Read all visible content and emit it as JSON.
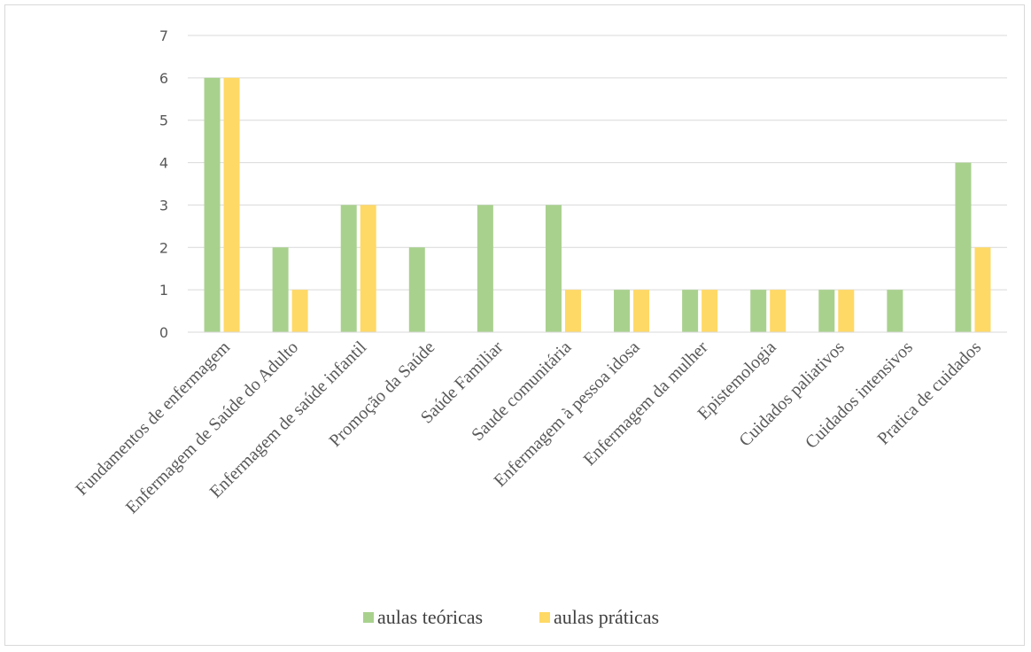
{
  "chart_data": {
    "type": "bar",
    "categories": [
      "Fundamentos de enfermagem",
      "Enfermagem de Saúde do Adulto",
      "Enfermagem de saúde infantil",
      "Promoção da Saúde",
      "Saúde Familiar",
      "Saude comunitária",
      "Enfermagem à pessoa idosa",
      "Enfermagem da mulher",
      "Epistemologia",
      "Cuidados paliativos",
      "Cuidados intensivos",
      "Pratica de cuidados"
    ],
    "series": [
      {
        "name": "aulas teóricas",
        "color": "#a9d18e",
        "values": [
          6,
          2,
          3,
          2,
          3,
          3,
          1,
          1,
          1,
          1,
          1,
          4
        ]
      },
      {
        "name": "aulas práticas",
        "color": "#ffd966",
        "values": [
          6,
          1,
          3,
          null,
          null,
          1,
          1,
          1,
          1,
          1,
          null,
          2
        ]
      }
    ],
    "yticks": [
      "0",
      "1",
      "2",
      "3",
      "4",
      "5",
      "6",
      "7"
    ],
    "ylim": [
      0,
      7
    ],
    "grid": true,
    "gridColor": "#d9d9d9",
    "legend_position": "bottom"
  }
}
